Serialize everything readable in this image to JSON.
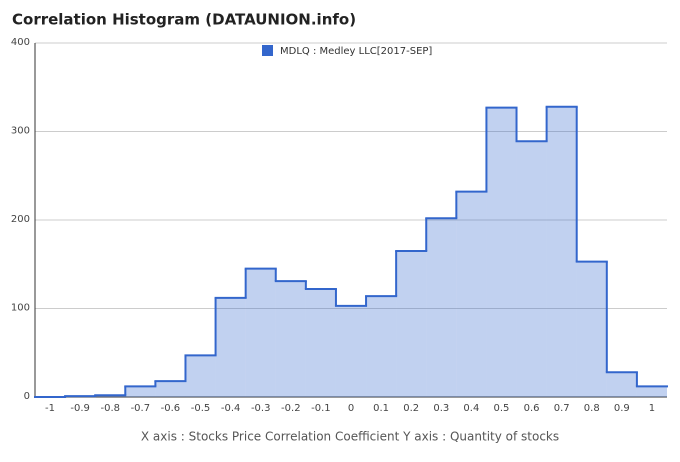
{
  "chart_data": {
    "type": "step-area",
    "title": "Correlation Histogram (DATAUNION.info)",
    "axis_caption": "X axis : Stocks Price Correlation Coefficient  Y axis : Quantity of stocks",
    "x": [
      -1,
      -0.9,
      -0.8,
      -0.7,
      -0.6,
      -0.5,
      -0.4,
      -0.3,
      -0.2,
      -0.1,
      0,
      0.1,
      0.2,
      0.3,
      0.4,
      0.5,
      0.6,
      0.7,
      0.8,
      0.9,
      1
    ],
    "series": [
      {
        "name": "MDLQ : Medley LLC[2017-SEP]",
        "color": "#3366cc",
        "values": [
          0,
          1,
          2,
          12,
          18,
          47,
          112,
          145,
          131,
          122,
          103,
          114,
          165,
          202,
          232,
          327,
          289,
          328,
          153,
          28,
          12
        ]
      }
    ],
    "xlim": [
      -1.05,
      1.05
    ],
    "xticks": [
      -1,
      -0.9,
      -0.8,
      -0.7,
      -0.6,
      -0.5,
      -0.4,
      -0.3,
      -0.2,
      -0.1,
      0,
      0.1,
      0.2,
      0.3,
      0.4,
      0.5,
      0.6,
      0.7,
      0.8,
      0.9,
      1
    ],
    "ylim": [
      0,
      400
    ],
    "yticks": [
      0,
      100,
      200,
      300,
      400
    ],
    "grid": true
  }
}
